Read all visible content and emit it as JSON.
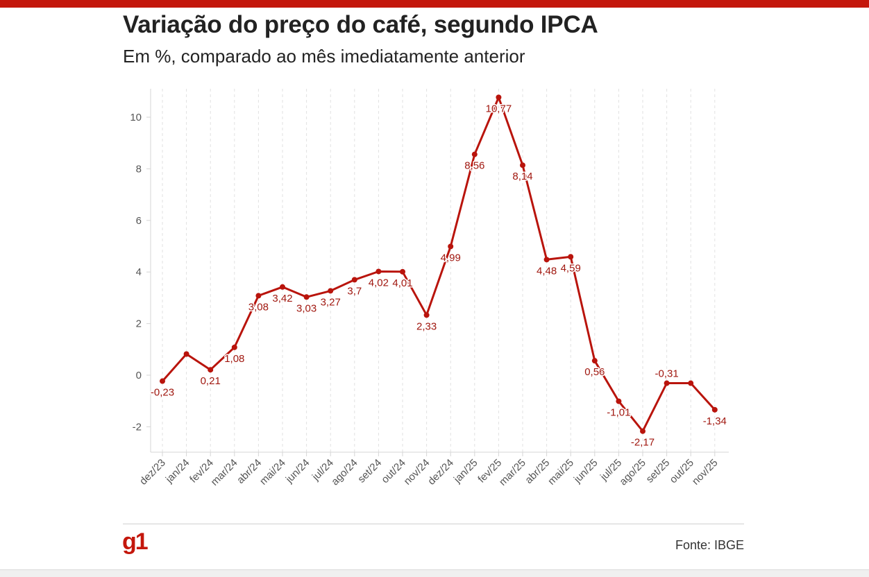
{
  "header": {
    "title": "Variação do preço do café, segundo IPCA",
    "subtitle": "Em %, comparado ao mês imediatamente anterior"
  },
  "footer": {
    "logo": "g1",
    "source": "Fonte: IBGE"
  },
  "colors": {
    "accent": "#c4170c",
    "line": "#b9140c",
    "label": "#a0170f"
  },
  "chart_data": {
    "type": "line",
    "title": "Variação do preço do café, segundo IPCA",
    "subtitle": "Em %, comparado ao mês imediatamente anterior",
    "xlabel": "",
    "ylabel": "",
    "ylim": [
      -3,
      11
    ],
    "yticks": [
      -2,
      0,
      2,
      4,
      6,
      8,
      10
    ],
    "ytick_labels": [
      "-2",
      "0",
      "2",
      "4",
      "6",
      "8",
      "10"
    ],
    "grid": "vertical dashed",
    "legend": "none",
    "categories": [
      "dez/23",
      "jan/24",
      "fev/24",
      "mar/24",
      "abr/24",
      "mai/24",
      "jun/24",
      "jul/24",
      "ago/24",
      "set/24",
      "out/24",
      "nov/24",
      "dez/24",
      "jan/25",
      "fev/25",
      "mar/25",
      "abr/25",
      "mai/25",
      "jun/25",
      "jul/25",
      "ago/25",
      "set/25",
      "out/25",
      "nov/25"
    ],
    "values": [
      -0.23,
      0.82,
      0.21,
      1.08,
      3.08,
      3.42,
      3.03,
      3.27,
      3.7,
      4.02,
      4.01,
      2.33,
      4.99,
      8.56,
      10.77,
      8.14,
      4.48,
      4.59,
      0.56,
      -1.01,
      -2.17,
      -0.31,
      -0.31,
      -1.34
    ],
    "data_labels": [
      "-0,23",
      "",
      "0,21",
      "1,08",
      "3,08",
      "3,42",
      "3,03",
      "3,27",
      "3,7",
      "4,02",
      "4,01",
      "2,33",
      "4,99",
      "8,56",
      "10,77",
      "8,14",
      "4,48",
      "4,59",
      "0,56",
      "-1,01",
      "-2,17",
      "-0,31",
      "",
      "-1,34"
    ]
  }
}
